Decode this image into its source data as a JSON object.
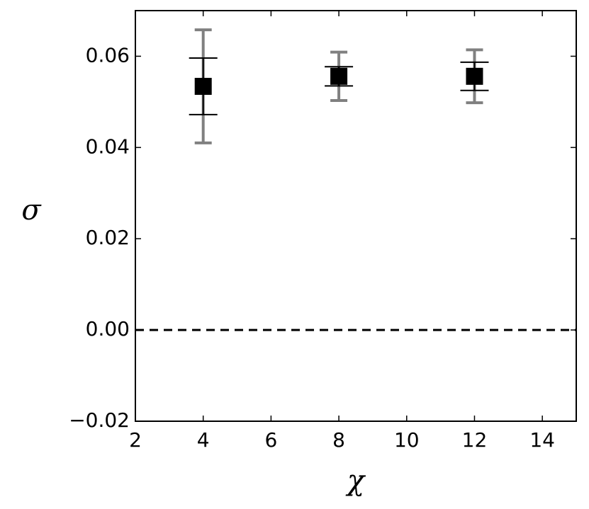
{
  "chart_data": {
    "type": "errorbar",
    "x_label": "χ",
    "y_label": "σ",
    "x": [
      4,
      8,
      12
    ],
    "series": [
      {
        "color": "#000000",
        "values": [
          0.0534,
          0.0556,
          0.0556
        ],
        "errors": [
          0.0062,
          0.0021,
          0.0031
        ],
        "errors_color": "#000000",
        "errors_outer": [
          0.0124,
          0.0053,
          0.0058
        ],
        "errors_outer_color": "#808080"
      }
    ],
    "reference_line": 0,
    "xlim": [
      2,
      15
    ],
    "xticks": [
      2,
      4,
      6,
      8,
      10,
      12,
      14
    ],
    "ylim": [
      -0.02,
      0.07
    ],
    "yticks": [
      {
        "value": -0.02,
        "label": "−0.02"
      },
      {
        "value": 0,
        "label": "0.00"
      },
      0.02,
      0.04,
      0.06
    ]
  }
}
